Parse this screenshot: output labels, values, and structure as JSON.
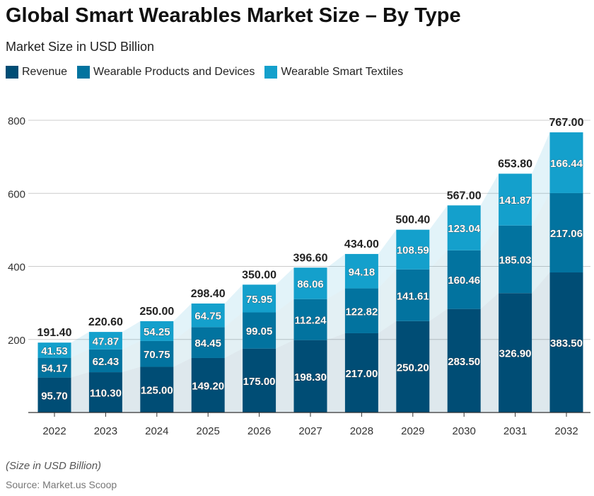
{
  "chart_data": {
    "type": "bar",
    "stacked": true,
    "title": "Global Smart Wearables Market Size – By Type",
    "subtitle": "Market Size in USD Billion",
    "categories": [
      "2022",
      "2023",
      "2024",
      "2025",
      "2026",
      "2027",
      "2028",
      "2029",
      "2030",
      "2031",
      "2032"
    ],
    "series": [
      {
        "name": "Revenue",
        "color": "#004d75",
        "values": [
          95.7,
          110.3,
          125.0,
          149.2,
          175.0,
          198.3,
          217.0,
          250.2,
          283.5,
          326.9,
          383.5
        ]
      },
      {
        "name": "Wearable Products and Devices",
        "color": "#02739f",
        "values": [
          54.17,
          62.43,
          70.75,
          84.45,
          99.05,
          112.24,
          122.82,
          141.61,
          160.46,
          185.03,
          217.06
        ]
      },
      {
        "name": "Wearable Smart Textiles",
        "color": "#14a0cc",
        "values": [
          41.53,
          47.87,
          54.25,
          64.75,
          75.95,
          86.06,
          94.18,
          108.59,
          123.04,
          141.87,
          166.44
        ]
      }
    ],
    "totals": [
      191.4,
      220.6,
      250.0,
      298.4,
      350.0,
      396.6,
      434.0,
      500.4,
      567.0,
      653.8,
      767.0
    ],
    "ylim": [
      0,
      800
    ],
    "yticks": [
      200,
      400,
      600,
      800
    ],
    "grid": true,
    "legend": "top-left",
    "note": "(Size in USD Billion)",
    "source": "Source: Market.us Scoop"
  }
}
